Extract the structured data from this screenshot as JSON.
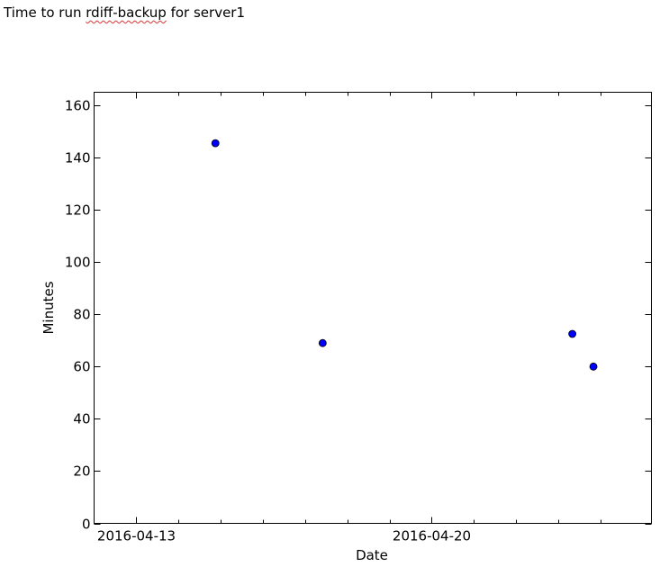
{
  "page": {
    "title_prefix": "Time to run ",
    "title_word": "rdiff-backup",
    "title_suffix": " for server1"
  },
  "chart_data": {
    "type": "scatter",
    "title": "",
    "xlabel": "Date",
    "ylabel": "Minutes",
    "x_is_date": true,
    "xlim": [
      "2016-04-12",
      "2016-04-25T05:00"
    ],
    "ylim": [
      0,
      165
    ],
    "x_major_ticks": [
      "2016-04-13",
      "2016-04-20"
    ],
    "x_minor_ticks": [
      "2016-04-14",
      "2016-04-15",
      "2016-04-16",
      "2016-04-17",
      "2016-04-18",
      "2016-04-19",
      "2016-04-21",
      "2016-04-22",
      "2016-04-23",
      "2016-04-24"
    ],
    "y_ticks": [
      0,
      20,
      40,
      60,
      80,
      100,
      120,
      140,
      160
    ],
    "grid": false,
    "marker_color": "#0000ff",
    "marker_edge_color": "#000000",
    "series": [
      {
        "points": [
          {
            "x": "2016-04-14T21:00",
            "y": 145.5
          },
          {
            "x": "2016-04-17T10:00",
            "y": 69
          },
          {
            "x": "2016-04-23T08:00",
            "y": 72.5
          },
          {
            "x": "2016-04-23T20:00",
            "y": 60
          }
        ]
      }
    ]
  }
}
